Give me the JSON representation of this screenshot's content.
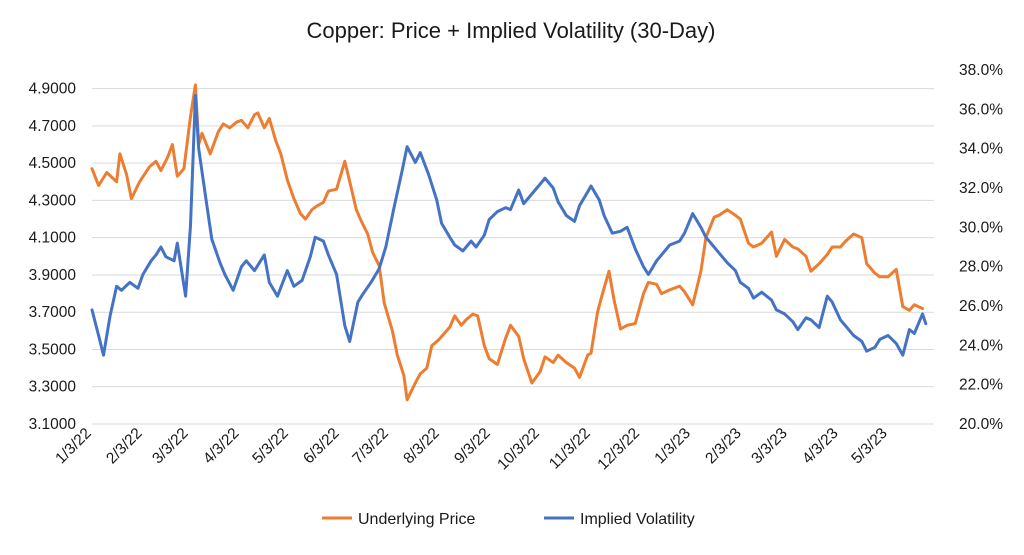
{
  "chart_data": {
    "type": "line",
    "title": "Copper: Price + Implied Volatility (30-Day)",
    "legend_position": "bottom",
    "grid": true,
    "x_axis": {
      "type": "date",
      "range": [
        "2022-01-03",
        "2023-05-31"
      ],
      "tick_dates": [
        "2022-01-03",
        "2022-02-03",
        "2022-03-03",
        "2022-04-03",
        "2022-05-03",
        "2022-06-03",
        "2022-07-03",
        "2022-08-03",
        "2022-09-03",
        "2022-10-03",
        "2022-11-03",
        "2022-12-03",
        "2023-01-03",
        "2023-02-03",
        "2023-03-03",
        "2023-04-03",
        "2023-05-03"
      ],
      "tick_labels": [
        "1/3/22",
        "2/3/22",
        "3/3/22",
        "4/3/22",
        "5/3/22",
        "6/3/22",
        "7/3/22",
        "8/3/22",
        "9/3/22",
        "10/3/22",
        "11/3/22",
        "12/3/22",
        "1/3/23",
        "2/3/23",
        "3/3/23",
        "4/3/23",
        "5/3/23"
      ]
    },
    "y_left": {
      "range": [
        3.1,
        5.0
      ],
      "tick_values": [
        3.1,
        3.3,
        3.5,
        3.7,
        3.9,
        4.1,
        4.3,
        4.5,
        4.7,
        4.9
      ],
      "tick_labels": [
        "3.1000",
        "3.3000",
        "3.5000",
        "3.7000",
        "3.9000",
        "4.1000",
        "4.3000",
        "4.5000",
        "4.7000",
        "4.9000"
      ]
    },
    "y_right": {
      "range": [
        20,
        38
      ],
      "tick_values": [
        20,
        22,
        24,
        26,
        28,
        30,
        32,
        34,
        36,
        38
      ],
      "tick_labels": [
        "20.0%",
        "22.0%",
        "24.0%",
        "26.0%",
        "28.0%",
        "30.0%",
        "32.0%",
        "34.0%",
        "36.0%",
        "38.0%"
      ]
    },
    "series": [
      {
        "name": "Underlying Price",
        "axis": "left",
        "color": "#ED7D31",
        "points": [
          [
            "2022-01-03",
            4.47
          ],
          [
            "2022-01-07",
            4.38
          ],
          [
            "2022-01-12",
            4.45
          ],
          [
            "2022-01-18",
            4.4
          ],
          [
            "2022-01-20",
            4.55
          ],
          [
            "2022-01-24",
            4.44
          ],
          [
            "2022-01-27",
            4.31
          ],
          [
            "2022-02-01",
            4.4
          ],
          [
            "2022-02-07",
            4.48
          ],
          [
            "2022-02-11",
            4.51
          ],
          [
            "2022-02-14",
            4.46
          ],
          [
            "2022-02-18",
            4.53
          ],
          [
            "2022-02-21",
            4.6
          ],
          [
            "2022-02-24",
            4.43
          ],
          [
            "2022-02-28",
            4.47
          ],
          [
            "2022-03-04",
            4.75
          ],
          [
            "2022-03-07",
            4.92
          ],
          [
            "2022-03-09",
            4.6
          ],
          [
            "2022-03-11",
            4.66
          ],
          [
            "2022-03-16",
            4.55
          ],
          [
            "2022-03-21",
            4.67
          ],
          [
            "2022-03-24",
            4.71
          ],
          [
            "2022-03-28",
            4.69
          ],
          [
            "2022-04-01",
            4.72
          ],
          [
            "2022-04-04",
            4.73
          ],
          [
            "2022-04-08",
            4.69
          ],
          [
            "2022-04-12",
            4.76
          ],
          [
            "2022-04-14",
            4.77
          ],
          [
            "2022-04-18",
            4.69
          ],
          [
            "2022-04-21",
            4.74
          ],
          [
            "2022-04-25",
            4.62
          ],
          [
            "2022-04-28",
            4.55
          ],
          [
            "2022-05-02",
            4.41
          ],
          [
            "2022-05-06",
            4.31
          ],
          [
            "2022-05-10",
            4.23
          ],
          [
            "2022-05-13",
            4.2
          ],
          [
            "2022-05-17",
            4.25
          ],
          [
            "2022-05-20",
            4.27
          ],
          [
            "2022-05-24",
            4.29
          ],
          [
            "2022-05-27",
            4.35
          ],
          [
            "2022-06-01",
            4.36
          ],
          [
            "2022-06-06",
            4.51
          ],
          [
            "2022-06-08",
            4.44
          ],
          [
            "2022-06-13",
            4.25
          ],
          [
            "2022-06-16",
            4.19
          ],
          [
            "2022-06-20",
            4.12
          ],
          [
            "2022-06-23",
            4.02
          ],
          [
            "2022-06-27",
            3.95
          ],
          [
            "2022-06-30",
            3.75
          ],
          [
            "2022-07-05",
            3.6
          ],
          [
            "2022-07-08",
            3.47
          ],
          [
            "2022-07-12",
            3.36
          ],
          [
            "2022-07-14",
            3.23
          ],
          [
            "2022-07-19",
            3.32
          ],
          [
            "2022-07-22",
            3.37
          ],
          [
            "2022-07-26",
            3.4
          ],
          [
            "2022-07-29",
            3.52
          ],
          [
            "2022-08-02",
            3.55
          ],
          [
            "2022-08-05",
            3.58
          ],
          [
            "2022-08-09",
            3.62
          ],
          [
            "2022-08-12",
            3.68
          ],
          [
            "2022-08-16",
            3.63
          ],
          [
            "2022-08-19",
            3.66
          ],
          [
            "2022-08-23",
            3.69
          ],
          [
            "2022-08-26",
            3.68
          ],
          [
            "2022-08-30",
            3.52
          ],
          [
            "2022-09-02",
            3.45
          ],
          [
            "2022-09-07",
            3.42
          ],
          [
            "2022-09-12",
            3.56
          ],
          [
            "2022-09-15",
            3.63
          ],
          [
            "2022-09-20",
            3.57
          ],
          [
            "2022-09-23",
            3.45
          ],
          [
            "2022-09-28",
            3.32
          ],
          [
            "2022-10-03",
            3.38
          ],
          [
            "2022-10-06",
            3.46
          ],
          [
            "2022-10-11",
            3.43
          ],
          [
            "2022-10-14",
            3.47
          ],
          [
            "2022-10-19",
            3.43
          ],
          [
            "2022-10-24",
            3.4
          ],
          [
            "2022-10-27",
            3.35
          ],
          [
            "2022-11-01",
            3.47
          ],
          [
            "2022-11-03",
            3.48
          ],
          [
            "2022-11-07",
            3.7
          ],
          [
            "2022-11-10",
            3.8
          ],
          [
            "2022-11-14",
            3.92
          ],
          [
            "2022-11-17",
            3.77
          ],
          [
            "2022-11-21",
            3.61
          ],
          [
            "2022-11-25",
            3.63
          ],
          [
            "2022-11-30",
            3.64
          ],
          [
            "2022-12-05",
            3.8
          ],
          [
            "2022-12-08",
            3.86
          ],
          [
            "2022-12-13",
            3.85
          ],
          [
            "2022-12-16",
            3.8
          ],
          [
            "2022-12-21",
            3.82
          ],
          [
            "2022-12-27",
            3.84
          ],
          [
            "2022-12-30",
            3.81
          ],
          [
            "2023-01-04",
            3.74
          ],
          [
            "2023-01-09",
            3.92
          ],
          [
            "2023-01-12",
            4.1
          ],
          [
            "2023-01-17",
            4.21
          ],
          [
            "2023-01-20",
            4.22
          ],
          [
            "2023-01-25",
            4.25
          ],
          [
            "2023-01-30",
            4.22
          ],
          [
            "2023-02-02",
            4.2
          ],
          [
            "2023-02-07",
            4.07
          ],
          [
            "2023-02-10",
            4.05
          ],
          [
            "2023-02-15",
            4.07
          ],
          [
            "2023-02-21",
            4.13
          ],
          [
            "2023-02-24",
            4.0
          ],
          [
            "2023-03-01",
            4.09
          ],
          [
            "2023-03-06",
            4.05
          ],
          [
            "2023-03-09",
            4.04
          ],
          [
            "2023-03-14",
            4.0
          ],
          [
            "2023-03-17",
            3.92
          ],
          [
            "2023-03-22",
            3.96
          ],
          [
            "2023-03-27",
            4.01
          ],
          [
            "2023-03-30",
            4.05
          ],
          [
            "2023-04-04",
            4.05
          ],
          [
            "2023-04-07",
            4.08
          ],
          [
            "2023-04-12",
            4.12
          ],
          [
            "2023-04-17",
            4.1
          ],
          [
            "2023-04-20",
            3.96
          ],
          [
            "2023-04-25",
            3.91
          ],
          [
            "2023-04-28",
            3.89
          ],
          [
            "2023-05-03",
            3.89
          ],
          [
            "2023-05-08",
            3.93
          ],
          [
            "2023-05-12",
            3.73
          ],
          [
            "2023-05-16",
            3.71
          ],
          [
            "2023-05-19",
            3.74
          ],
          [
            "2023-05-24",
            3.72
          ]
        ]
      },
      {
        "name": "Implied Volatility",
        "axis": "right",
        "color": "#4472C4",
        "points": [
          [
            "2022-01-03",
            25.8
          ],
          [
            "2022-01-07",
            24.5
          ],
          [
            "2022-01-10",
            23.5
          ],
          [
            "2022-01-14",
            25.5
          ],
          [
            "2022-01-18",
            27.0
          ],
          [
            "2022-01-21",
            26.8
          ],
          [
            "2022-01-26",
            27.2
          ],
          [
            "2022-01-31",
            26.9
          ],
          [
            "2022-02-03",
            27.6
          ],
          [
            "2022-02-08",
            28.3
          ],
          [
            "2022-02-11",
            28.6
          ],
          [
            "2022-02-14",
            29.0
          ],
          [
            "2022-02-17",
            28.5
          ],
          [
            "2022-02-22",
            28.3
          ],
          [
            "2022-02-24",
            29.2
          ],
          [
            "2022-03-01",
            26.5
          ],
          [
            "2022-03-04",
            30.1
          ],
          [
            "2022-03-07",
            36.7
          ],
          [
            "2022-03-09",
            34.0
          ],
          [
            "2022-03-14",
            31.1
          ],
          [
            "2022-03-17",
            29.4
          ],
          [
            "2022-03-22",
            28.2
          ],
          [
            "2022-03-25",
            27.6
          ],
          [
            "2022-03-30",
            26.8
          ],
          [
            "2022-04-04",
            28.0
          ],
          [
            "2022-04-07",
            28.3
          ],
          [
            "2022-04-12",
            27.8
          ],
          [
            "2022-04-18",
            28.6
          ],
          [
            "2022-04-21",
            27.2
          ],
          [
            "2022-04-26",
            26.5
          ],
          [
            "2022-05-02",
            27.8
          ],
          [
            "2022-05-06",
            27.0
          ],
          [
            "2022-05-11",
            27.3
          ],
          [
            "2022-05-16",
            28.5
          ],
          [
            "2022-05-19",
            29.5
          ],
          [
            "2022-05-24",
            29.3
          ],
          [
            "2022-05-27",
            28.6
          ],
          [
            "2022-06-01",
            27.6
          ],
          [
            "2022-06-06",
            25.0
          ],
          [
            "2022-06-09",
            24.2
          ],
          [
            "2022-06-14",
            26.2
          ],
          [
            "2022-06-17",
            26.6
          ],
          [
            "2022-06-22",
            27.2
          ],
          [
            "2022-06-27",
            27.9
          ],
          [
            "2022-07-01",
            29.0
          ],
          [
            "2022-07-06",
            31.0
          ],
          [
            "2022-07-11",
            32.9
          ],
          [
            "2022-07-14",
            34.1
          ],
          [
            "2022-07-19",
            33.3
          ],
          [
            "2022-07-22",
            33.8
          ],
          [
            "2022-07-27",
            32.7
          ],
          [
            "2022-08-01",
            31.4
          ],
          [
            "2022-08-04",
            30.2
          ],
          [
            "2022-08-09",
            29.5
          ],
          [
            "2022-08-12",
            29.1
          ],
          [
            "2022-08-17",
            28.8
          ],
          [
            "2022-08-22",
            29.3
          ],
          [
            "2022-08-25",
            29.0
          ],
          [
            "2022-08-30",
            29.6
          ],
          [
            "2022-09-02",
            30.4
          ],
          [
            "2022-09-07",
            30.8
          ],
          [
            "2022-09-12",
            31.0
          ],
          [
            "2022-09-15",
            30.9
          ],
          [
            "2022-09-20",
            31.9
          ],
          [
            "2022-09-23",
            31.2
          ],
          [
            "2022-09-28",
            31.7
          ],
          [
            "2022-10-03",
            32.2
          ],
          [
            "2022-10-06",
            32.5
          ],
          [
            "2022-10-11",
            32.0
          ],
          [
            "2022-10-14",
            31.3
          ],
          [
            "2022-10-19",
            30.6
          ],
          [
            "2022-10-24",
            30.3
          ],
          [
            "2022-10-27",
            31.1
          ],
          [
            "2022-11-01",
            31.8
          ],
          [
            "2022-11-03",
            32.1
          ],
          [
            "2022-11-08",
            31.4
          ],
          [
            "2022-11-11",
            30.6
          ],
          [
            "2022-11-16",
            29.7
          ],
          [
            "2022-11-21",
            29.8
          ],
          [
            "2022-11-25",
            30.0
          ],
          [
            "2022-11-30",
            28.9
          ],
          [
            "2022-12-05",
            28.0
          ],
          [
            "2022-12-08",
            27.6
          ],
          [
            "2022-12-13",
            28.3
          ],
          [
            "2022-12-16",
            28.6
          ],
          [
            "2022-12-21",
            29.1
          ],
          [
            "2022-12-27",
            29.3
          ],
          [
            "2022-12-30",
            29.7
          ],
          [
            "2023-01-04",
            30.7
          ],
          [
            "2023-01-09",
            30.0
          ],
          [
            "2023-01-12",
            29.5
          ],
          [
            "2023-01-17",
            29.0
          ],
          [
            "2023-01-20",
            28.7
          ],
          [
            "2023-01-25",
            28.2
          ],
          [
            "2023-01-30",
            27.8
          ],
          [
            "2023-02-02",
            27.2
          ],
          [
            "2023-02-07",
            26.9
          ],
          [
            "2023-02-10",
            26.4
          ],
          [
            "2023-02-15",
            26.7
          ],
          [
            "2023-02-21",
            26.3
          ],
          [
            "2023-02-24",
            25.8
          ],
          [
            "2023-03-01",
            25.6
          ],
          [
            "2023-03-06",
            25.2
          ],
          [
            "2023-03-09",
            24.8
          ],
          [
            "2023-03-14",
            25.4
          ],
          [
            "2023-03-17",
            25.3
          ],
          [
            "2023-03-22",
            24.9
          ],
          [
            "2023-03-27",
            26.5
          ],
          [
            "2023-03-30",
            26.2
          ],
          [
            "2023-04-04",
            25.3
          ],
          [
            "2023-04-07",
            25.0
          ],
          [
            "2023-04-12",
            24.5
          ],
          [
            "2023-04-17",
            24.2
          ],
          [
            "2023-04-20",
            23.7
          ],
          [
            "2023-04-25",
            23.9
          ],
          [
            "2023-04-28",
            24.3
          ],
          [
            "2023-05-03",
            24.5
          ],
          [
            "2023-05-08",
            24.1
          ],
          [
            "2023-05-12",
            23.5
          ],
          [
            "2023-05-16",
            24.8
          ],
          [
            "2023-05-19",
            24.6
          ],
          [
            "2023-05-24",
            25.6
          ],
          [
            "2023-05-26",
            25.1
          ]
        ]
      }
    ]
  }
}
